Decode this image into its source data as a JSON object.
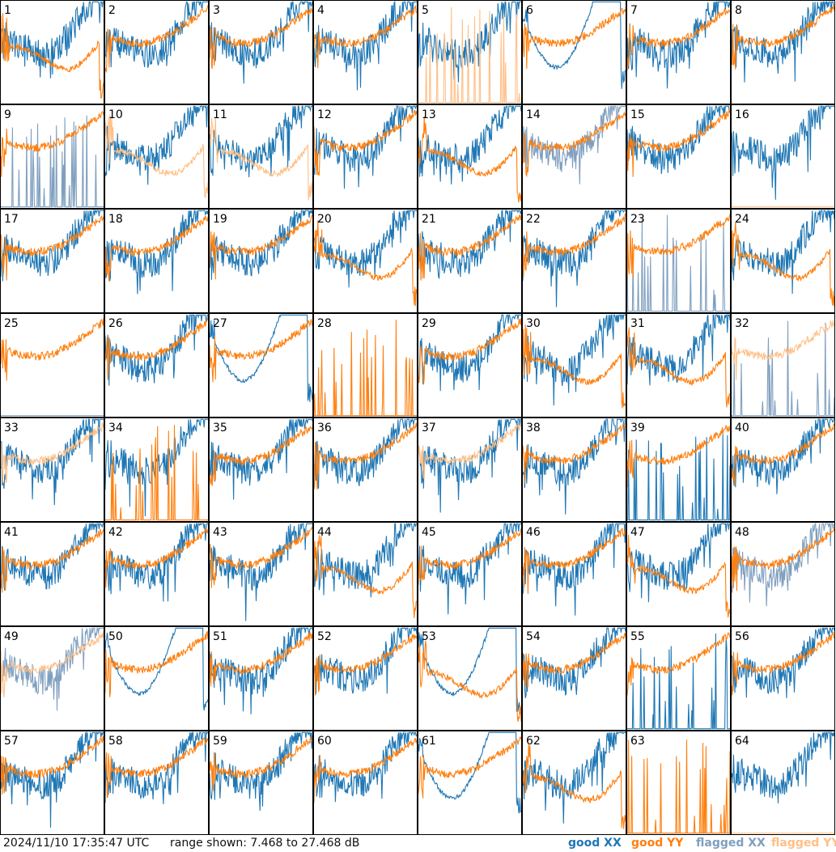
{
  "footer": {
    "timestamp": "2024/11/10 17:35:47 UTC",
    "range_text": "range shown: 7.468 to 27.468 dB"
  },
  "legend": [
    {
      "label": "good XX",
      "color": "#1f77b4"
    },
    {
      "label": "good YY",
      "color": "#ff7f0e"
    },
    {
      "label": "flagged XX",
      "color": "#7f9fbf"
    },
    {
      "label": "flagged YY",
      "color": "#ffbf87"
    }
  ],
  "chart_data": {
    "type": "line",
    "grid": {
      "rows": 8,
      "cols": 8
    },
    "ylim": [
      7.468,
      27.468
    ],
    "yunit": "dB",
    "series_styles": {
      "good_xx": "#1f77b4",
      "good_yy": "#ff7f0e",
      "flagged_xx": "#7f9fbf",
      "flagged_yy": "#ffbf87"
    },
    "panels": [
      {
        "label": "1",
        "xx": "good",
        "yy": "good",
        "xx_shape": "normal",
        "yy_shape": "dip"
      },
      {
        "label": "2",
        "xx": "good",
        "yy": "good",
        "xx_shape": "normal",
        "yy_shape": "normal"
      },
      {
        "label": "3",
        "xx": "good",
        "yy": "good",
        "xx_shape": "normal",
        "yy_shape": "normal"
      },
      {
        "label": "4",
        "xx": "good",
        "yy": "good",
        "xx_shape": "normal",
        "yy_shape": "normal"
      },
      {
        "label": "5",
        "xx": "good",
        "yy": "flagged",
        "xx_shape": "normal",
        "yy_shape": "spikes"
      },
      {
        "label": "6",
        "xx": "good",
        "yy": "good",
        "xx_shape": "smooth",
        "yy_shape": "normal"
      },
      {
        "label": "7",
        "xx": "good",
        "yy": "good",
        "xx_shape": "normal",
        "yy_shape": "normal"
      },
      {
        "label": "8",
        "xx": "good",
        "yy": "good",
        "xx_shape": "normal",
        "yy_shape": "normal"
      },
      {
        "label": "9",
        "xx": "flagged",
        "yy": "good",
        "xx_shape": "spikes",
        "yy_shape": "normal"
      },
      {
        "label": "10",
        "xx": "good",
        "yy": "flagged",
        "xx_shape": "normal",
        "yy_shape": "dip"
      },
      {
        "label": "11",
        "xx": "good",
        "yy": "flagged",
        "xx_shape": "normal",
        "yy_shape": "dip"
      },
      {
        "label": "12",
        "xx": "good",
        "yy": "good",
        "xx_shape": "normal",
        "yy_shape": "normal"
      },
      {
        "label": "13",
        "xx": "good",
        "yy": "good",
        "xx_shape": "normal",
        "yy_shape": "dip"
      },
      {
        "label": "14",
        "xx": "flagged",
        "yy": "good",
        "xx_shape": "normal",
        "yy_shape": "normal"
      },
      {
        "label": "15",
        "xx": "good",
        "yy": "good",
        "xx_shape": "normal",
        "yy_shape": "normal"
      },
      {
        "label": "16",
        "xx": "good",
        "yy": "flagged",
        "xx_shape": "normal",
        "yy_shape": "flat"
      },
      {
        "label": "17",
        "xx": "good",
        "yy": "good",
        "xx_shape": "normal",
        "yy_shape": "normal"
      },
      {
        "label": "18",
        "xx": "good",
        "yy": "good",
        "xx_shape": "normal",
        "yy_shape": "normal"
      },
      {
        "label": "19",
        "xx": "good",
        "yy": "good",
        "xx_shape": "normal",
        "yy_shape": "normal"
      },
      {
        "label": "20",
        "xx": "good",
        "yy": "good",
        "xx_shape": "normal",
        "yy_shape": "dip"
      },
      {
        "label": "21",
        "xx": "good",
        "yy": "good",
        "xx_shape": "normal",
        "yy_shape": "normal"
      },
      {
        "label": "22",
        "xx": "good",
        "yy": "good",
        "xx_shape": "normal",
        "yy_shape": "normal"
      },
      {
        "label": "23",
        "xx": "flagged",
        "yy": "good",
        "xx_shape": "spikes",
        "yy_shape": "normal"
      },
      {
        "label": "24",
        "xx": "good",
        "yy": "good",
        "xx_shape": "normal",
        "yy_shape": "dip"
      },
      {
        "label": "25",
        "xx": "flagged",
        "yy": "good",
        "xx_shape": "flat",
        "yy_shape": "normal"
      },
      {
        "label": "26",
        "xx": "good",
        "yy": "good",
        "xx_shape": "normal",
        "yy_shape": "normal"
      },
      {
        "label": "27",
        "xx": "good",
        "yy": "good",
        "xx_shape": "smooth",
        "yy_shape": "normal"
      },
      {
        "label": "28",
        "xx": "flagged",
        "yy": "good",
        "xx_shape": "flat",
        "yy_shape": "spikes"
      },
      {
        "label": "29",
        "xx": "good",
        "yy": "good",
        "xx_shape": "normal",
        "yy_shape": "normal"
      },
      {
        "label": "30",
        "xx": "good",
        "yy": "good",
        "xx_shape": "normal",
        "yy_shape": "dip"
      },
      {
        "label": "31",
        "xx": "good",
        "yy": "good",
        "xx_shape": "normal",
        "yy_shape": "dip"
      },
      {
        "label": "32",
        "xx": "flagged",
        "yy": "flagged",
        "xx_shape": "spikes",
        "yy_shape": "normal"
      },
      {
        "label": "33",
        "xx": "good",
        "yy": "flagged",
        "xx_shape": "normal",
        "yy_shape": "normal"
      },
      {
        "label": "34",
        "xx": "good",
        "yy": "good",
        "xx_shape": "normal",
        "yy_shape": "spikes"
      },
      {
        "label": "35",
        "xx": "good",
        "yy": "good",
        "xx_shape": "normal",
        "yy_shape": "normal"
      },
      {
        "label": "36",
        "xx": "good",
        "yy": "good",
        "xx_shape": "normal",
        "yy_shape": "normal"
      },
      {
        "label": "37",
        "xx": "good",
        "yy": "flagged",
        "xx_shape": "normal",
        "yy_shape": "normal"
      },
      {
        "label": "38",
        "xx": "good",
        "yy": "good",
        "xx_shape": "normal",
        "yy_shape": "normal"
      },
      {
        "label": "39",
        "xx": "good",
        "yy": "good",
        "xx_shape": "spikes",
        "yy_shape": "normal"
      },
      {
        "label": "40",
        "xx": "good",
        "yy": "good",
        "xx_shape": "normal",
        "yy_shape": "normal"
      },
      {
        "label": "41",
        "xx": "good",
        "yy": "good",
        "xx_shape": "normal",
        "yy_shape": "normal"
      },
      {
        "label": "42",
        "xx": "good",
        "yy": "good",
        "xx_shape": "normal",
        "yy_shape": "normal"
      },
      {
        "label": "43",
        "xx": "good",
        "yy": "good",
        "xx_shape": "normal",
        "yy_shape": "normal"
      },
      {
        "label": "44",
        "xx": "good",
        "yy": "good",
        "xx_shape": "normal",
        "yy_shape": "dip"
      },
      {
        "label": "45",
        "xx": "good",
        "yy": "good",
        "xx_shape": "normal",
        "yy_shape": "normal"
      },
      {
        "label": "46",
        "xx": "good",
        "yy": "good",
        "xx_shape": "normal",
        "yy_shape": "normal"
      },
      {
        "label": "47",
        "xx": "good",
        "yy": "good",
        "xx_shape": "normal",
        "yy_shape": "dip"
      },
      {
        "label": "48",
        "xx": "flagged",
        "yy": "good",
        "xx_shape": "normal",
        "yy_shape": "normal"
      },
      {
        "label": "49",
        "xx": "flagged",
        "yy": "flagged",
        "xx_shape": "normal",
        "yy_shape": "normal"
      },
      {
        "label": "50",
        "xx": "good",
        "yy": "good",
        "xx_shape": "smooth",
        "yy_shape": "normal"
      },
      {
        "label": "51",
        "xx": "good",
        "yy": "good",
        "xx_shape": "normal",
        "yy_shape": "normal"
      },
      {
        "label": "52",
        "xx": "good",
        "yy": "good",
        "xx_shape": "normal",
        "yy_shape": "normal"
      },
      {
        "label": "53",
        "xx": "good",
        "yy": "good",
        "xx_shape": "smooth",
        "yy_shape": "dip"
      },
      {
        "label": "54",
        "xx": "good",
        "yy": "good",
        "xx_shape": "normal",
        "yy_shape": "normal"
      },
      {
        "label": "55",
        "xx": "good",
        "yy": "good",
        "xx_shape": "spikes",
        "yy_shape": "normal"
      },
      {
        "label": "56",
        "xx": "good",
        "yy": "good",
        "xx_shape": "normal",
        "yy_shape": "normal"
      },
      {
        "label": "57",
        "xx": "good",
        "yy": "good",
        "xx_shape": "normal",
        "yy_shape": "normal"
      },
      {
        "label": "58",
        "xx": "good",
        "yy": "good",
        "xx_shape": "normal",
        "yy_shape": "normal"
      },
      {
        "label": "59",
        "xx": "good",
        "yy": "good",
        "xx_shape": "normal",
        "yy_shape": "normal"
      },
      {
        "label": "60",
        "xx": "good",
        "yy": "good",
        "xx_shape": "normal",
        "yy_shape": "normal"
      },
      {
        "label": "61",
        "xx": "good",
        "yy": "good",
        "xx_shape": "smooth",
        "yy_shape": "normal"
      },
      {
        "label": "62",
        "xx": "good",
        "yy": "good",
        "xx_shape": "normal",
        "yy_shape": "dip"
      },
      {
        "label": "63",
        "xx": "flagged",
        "yy": "good",
        "xx_shape": "flat",
        "yy_shape": "spikes"
      },
      {
        "label": "64",
        "xx": "good",
        "yy": "flagged",
        "xx_shape": "normal",
        "yy_shape": "flat"
      }
    ]
  }
}
